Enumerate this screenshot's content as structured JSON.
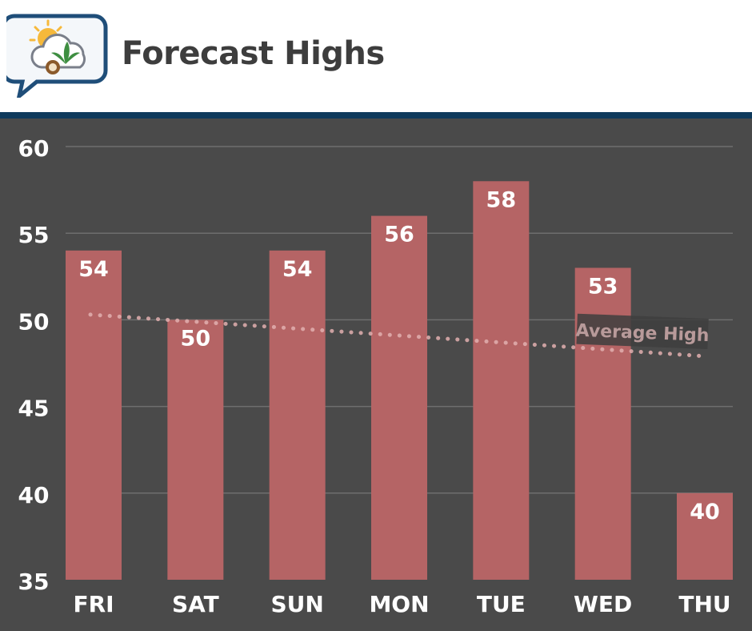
{
  "header": {
    "title": "Forecast Highs",
    "logo_icon": "weather-cannabis-logo-icon"
  },
  "colors": {
    "bar": "#b56465",
    "background": "#4a4a4a",
    "grid": "#6e6e6e",
    "avg_line": "#e2b0b0",
    "header_rule": "#0f3a5c",
    "label_text": "#ffffff"
  },
  "chart_data": {
    "type": "bar",
    "categories": [
      "FRI",
      "SAT",
      "SUN",
      "MON",
      "TUE",
      "WED",
      "THU"
    ],
    "values": [
      54,
      50,
      54,
      56,
      58,
      53,
      40
    ],
    "data_labels": [
      "54",
      "50",
      "54",
      "56",
      "58",
      "53",
      "40"
    ],
    "ylim": [
      35,
      60
    ],
    "yticks": [
      35,
      40,
      45,
      50,
      55,
      60
    ],
    "grid": true,
    "series": [
      {
        "name": "",
        "values": [
          54,
          50,
          54,
          56,
          58,
          53,
          40
        ]
      }
    ],
    "average_line": {
      "label": "Average High",
      "start": 50.3,
      "end": 47.9,
      "style": "dotted"
    }
  }
}
